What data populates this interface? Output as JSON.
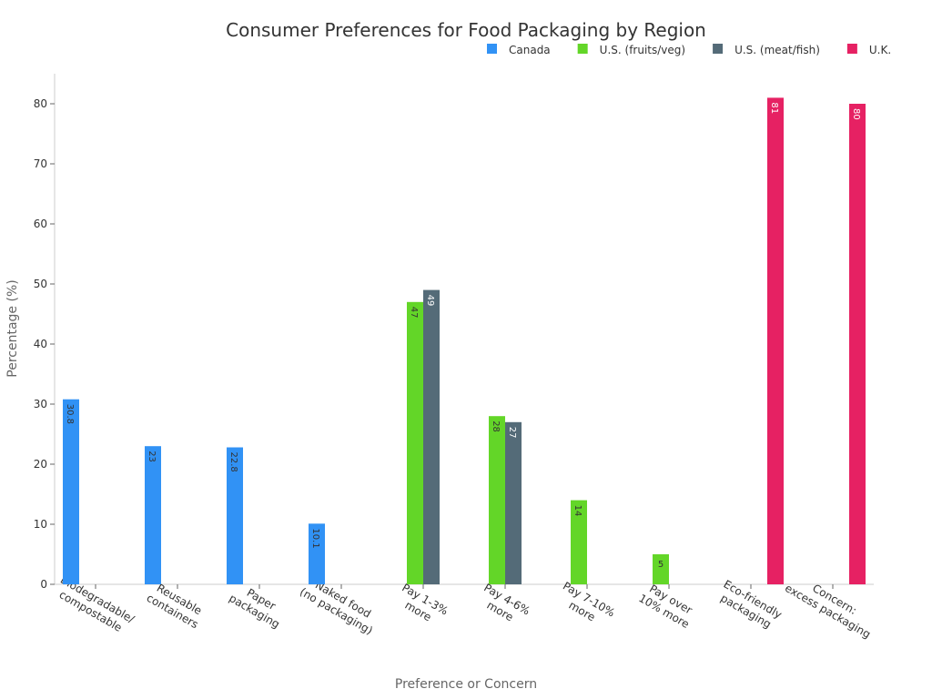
{
  "chart_data": {
    "type": "bar",
    "title": "Consumer Preferences for Food Packaging by Region",
    "x_label": "Preference or Concern",
    "y_label": "Percentage (%)",
    "categories": [
      "Biodegradable/\ncompostable",
      "Reusable\ncontainers",
      "Paper\npackaging",
      "Naked food\n(no packaging)",
      "Pay 1-3%\nmore",
      "Pay 4-6%\nmore",
      "Pay 7-10%\nmore",
      "Pay over\n10% more",
      "Eco-friendly\npackaging",
      "Concern:\nexcess packaging"
    ],
    "series": [
      {
        "name": "Canada",
        "color": "#3192f5",
        "values": [
          30.8,
          23,
          22.8,
          10.1,
          null,
          null,
          null,
          null,
          null,
          null
        ]
      },
      {
        "name": "U.S. (fruits/veg)",
        "color": "#63d628",
        "values": [
          null,
          null,
          null,
          null,
          47,
          28,
          14,
          5,
          null,
          null
        ]
      },
      {
        "name": "U.S. (meat/fish)",
        "color": "#546b78",
        "values": [
          null,
          null,
          null,
          null,
          49,
          27,
          null,
          null,
          null,
          null
        ]
      },
      {
        "name": "U.K.",
        "color": "#e62163",
        "values": [
          null,
          null,
          null,
          null,
          null,
          null,
          null,
          null,
          81,
          80
        ]
      }
    ],
    "ylim": [
      0,
      85
    ],
    "yticks": [
      0,
      10,
      20,
      30,
      40,
      50,
      60,
      70,
      80
    ],
    "legend": "top-right"
  }
}
